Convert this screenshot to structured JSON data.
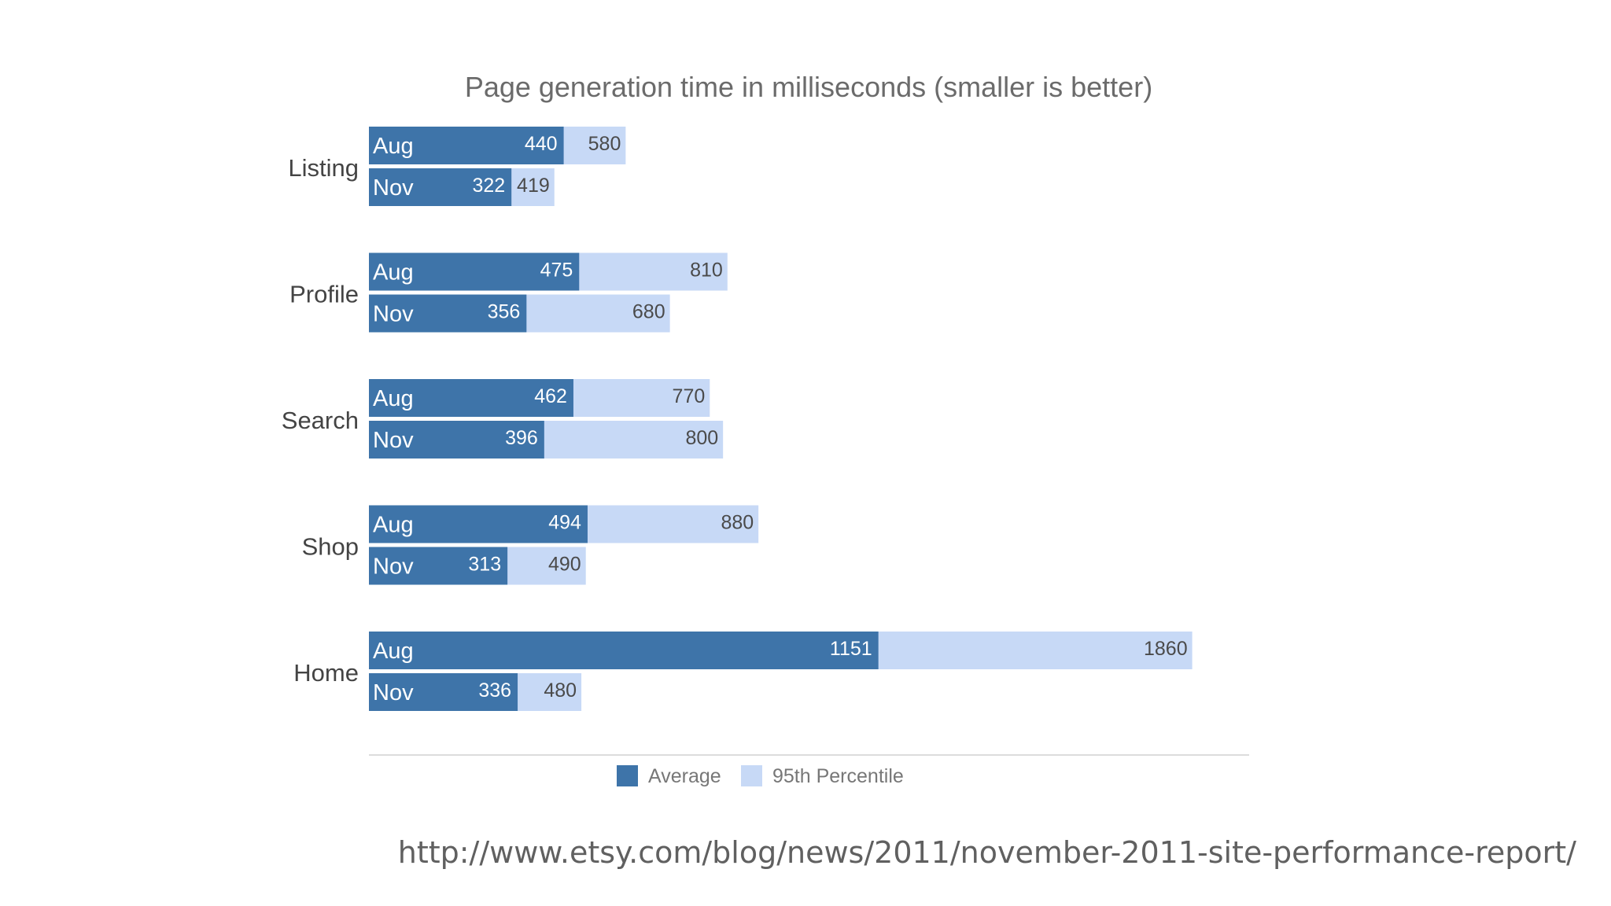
{
  "colors": {
    "average": "#3e74a9",
    "p95": "#c7d9f6",
    "axis": "#dcdcdc"
  },
  "chart_data": {
    "type": "bar",
    "orientation": "horizontal",
    "title": "Page generation time in milliseconds (smaller is better)",
    "categories": [
      "Listing",
      "Profile",
      "Search",
      "Shop",
      "Home"
    ],
    "periods": [
      "Aug",
      "Nov"
    ],
    "series": [
      {
        "name": "Average",
        "values": {
          "Aug": [
            440,
            475,
            462,
            494,
            1151
          ],
          "Nov": [
            322,
            356,
            396,
            313,
            336
          ]
        }
      },
      {
        "name": "95th Percentile",
        "values": {
          "Aug": [
            580,
            810,
            770,
            880,
            1860
          ],
          "Nov": [
            419,
            680,
            800,
            490,
            480
          ]
        }
      }
    ],
    "xlim": [
      0,
      2000
    ],
    "grid": false,
    "legend_position": "bottom"
  },
  "source": {
    "url": "http://www.etsy.com/blog/news/2011/november-2011-site-performance-report/"
  }
}
